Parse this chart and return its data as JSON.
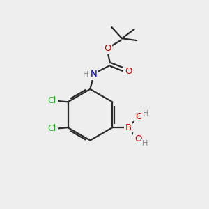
{
  "background_color": "#eeeeee",
  "bond_color": "#2a2a2a",
  "atom_colors": {
    "C": "#2a2a2a",
    "H": "#808080",
    "N": "#0000cc",
    "O": "#cc0000",
    "B": "#cc0000",
    "Cl": "#22aa22"
  },
  "figsize": [
    3.0,
    3.0
  ],
  "dpi": 100
}
